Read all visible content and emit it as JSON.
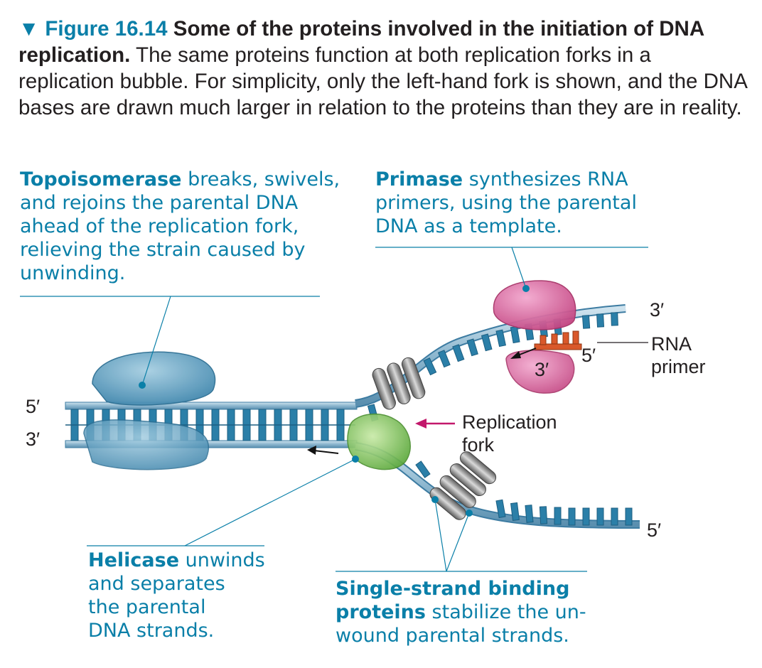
{
  "caption": {
    "marker": "▼",
    "figure_label": "Figure 16.14",
    "title": "Some of the proteins involved in the initiation of DNA replication.",
    "body": "The same proteins function at both replication forks in a replication bubble. For simplicity, only the left-hand fork is shown, and the DNA bases are drawn much larger in relation to the proteins than they are in reality."
  },
  "callouts": {
    "topoisomerase": {
      "term": "Topoisomerase",
      "text": " breaks, swivels,\nand rejoins the parental DNA\nahead of the replication fork,\nrelieving the strain caused by\nunwinding."
    },
    "primase": {
      "term": "Primase",
      "text": " synthesizes RNA\nprimers, using the parental\nDNA as a template."
    },
    "helicase": {
      "term": "Helicase",
      "text": " unwinds\nand separates\nthe parental\nDNA strands."
    },
    "ssb": {
      "term": "Single-strand binding\nproteins",
      "text": " stabilize the un-\nwound parental strands."
    }
  },
  "labels": {
    "left_top_5prime": "5′",
    "left_bottom_3prime": "3′",
    "top_right_3prime": "3′",
    "primer_5prime": "5′",
    "primer_3prime": "3′",
    "rna_primer": "RNA\nprimer",
    "replication_fork": "Replication\nfork",
    "bottom_right_5prime": "5′"
  },
  "colors": {
    "accent": "#0a7fa8",
    "dna_blue": "#2b7fa8",
    "topoisomerase": "#5b9fc0",
    "primase": "#d6539a",
    "helicase": "#7fc35a",
    "ssb": "#8a8a8a",
    "rna_primer": "#d9582b",
    "fork_arrow": "#c2186b"
  }
}
